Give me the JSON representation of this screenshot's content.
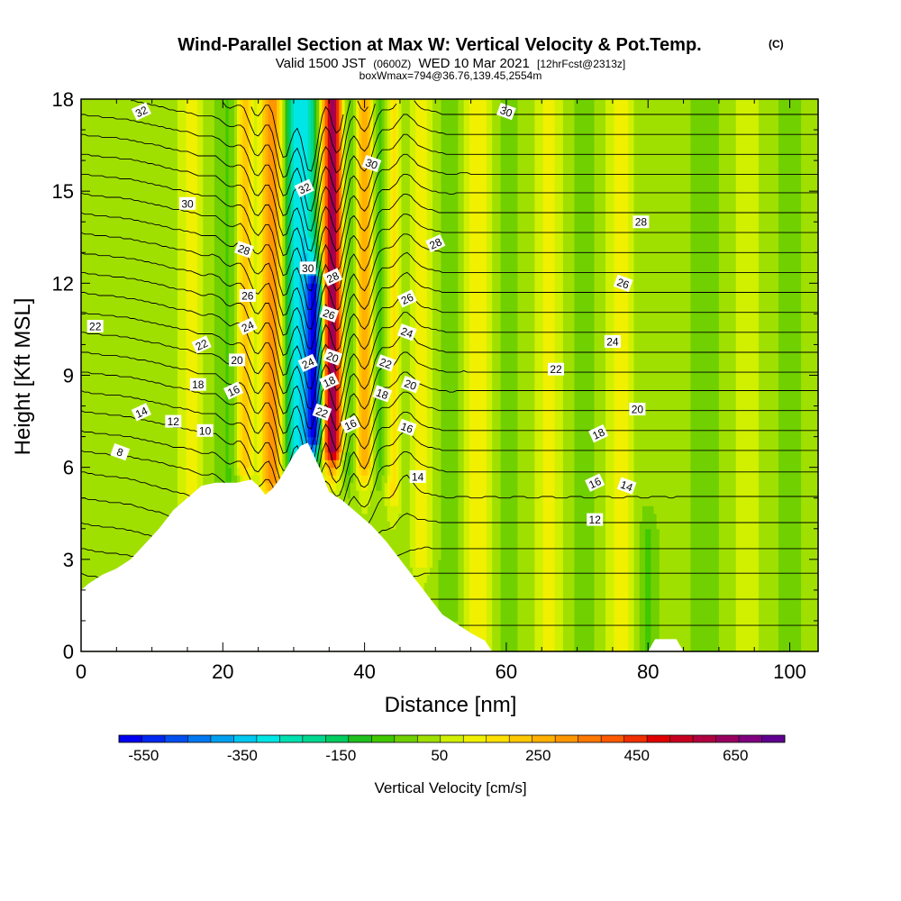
{
  "chart_data": {
    "type": "heatmap",
    "title": "Wind-Parallel Section at Max W: Vertical Velocity & Pot.Temp.",
    "title_mark": "(C)",
    "subtitle_parts": [
      "Valid 1500 JST",
      "(0600Z)",
      "WED 10 Mar 2021",
      "[12hrFcst@2313z]"
    ],
    "subtitle2": "boxWmax=794@36.76,139.45,2554m",
    "xlabel": "Distance [nm]",
    "ylabel": "Height [Kft MSL]",
    "xlim": [
      0,
      104
    ],
    "ylim": [
      0,
      18
    ],
    "xticks": [
      "0",
      "20",
      "40",
      "60",
      "80",
      "100"
    ],
    "yticks": [
      "0",
      "3",
      "6",
      "9",
      "12",
      "15",
      "18"
    ],
    "colorbar": {
      "label": "Vertical Velocity [cm/s]",
      "min": -600,
      "max": 750,
      "step": 50,
      "tick_labels": [
        "-550",
        "-350",
        "-150",
        "50",
        "250",
        "450",
        "650"
      ],
      "tick_values": [
        -550,
        -350,
        -150,
        50,
        250,
        450,
        650
      ],
      "colors": [
        "#0000f0",
        "#0028f0",
        "#0050f0",
        "#0078f0",
        "#00a0f0",
        "#00c8f0",
        "#00e6e6",
        "#00e0b0",
        "#00d890",
        "#00cc60",
        "#20c020",
        "#40c800",
        "#70d000",
        "#a0e000",
        "#d0f000",
        "#f0f000",
        "#ffe000",
        "#ffc800",
        "#ffb000",
        "#ff9600",
        "#ff7800",
        "#ff5a00",
        "#f03000",
        "#e00000",
        "#c80020",
        "#b00040",
        "#980060",
        "#800080",
        "#600090"
      ]
    },
    "terrain_kft": [
      [
        0,
        2
      ],
      [
        1,
        2.2
      ],
      [
        3,
        2.5
      ],
      [
        5,
        2.7
      ],
      [
        7,
        3.0
      ],
      [
        9,
        3.5
      ],
      [
        11,
        4.0
      ],
      [
        12,
        4.3
      ],
      [
        13,
        4.6
      ],
      [
        15,
        5.0
      ],
      [
        17,
        5.4
      ],
      [
        19,
        5.5
      ],
      [
        22,
        5.5
      ],
      [
        24,
        5.6
      ],
      [
        25,
        5.4
      ],
      [
        26,
        5.1
      ],
      [
        27,
        5.3
      ],
      [
        28,
        5.6
      ],
      [
        29,
        6.0
      ],
      [
        30,
        6.4
      ],
      [
        31,
        6.7
      ],
      [
        32,
        6.8
      ],
      [
        33,
        6.3
      ],
      [
        34,
        5.8
      ],
      [
        35,
        5.2
      ],
      [
        37,
        4.9
      ],
      [
        39,
        4.5
      ],
      [
        41,
        4.1
      ],
      [
        43,
        3.6
      ],
      [
        45,
        3.0
      ],
      [
        47,
        2.4
      ],
      [
        49,
        1.8
      ],
      [
        51,
        1.2
      ],
      [
        53,
        0.9
      ],
      [
        55,
        0.6
      ],
      [
        57,
        0.35
      ],
      [
        58,
        0.0
      ],
      [
        80,
        0.0
      ],
      [
        81,
        0.4
      ],
      [
        84,
        0.4
      ],
      [
        85,
        0.0
      ],
      [
        104,
        0.0
      ]
    ],
    "w_background_cms": 25,
    "w_features": [
      {
        "x": 15.5,
        "width": 1.5,
        "w": 100,
        "zmin": 4.5,
        "zmax": 18
      },
      {
        "x": 21,
        "width": 1.8,
        "w": -80,
        "zmin": 5,
        "zmax": 18
      },
      {
        "x": 23,
        "width": 1.2,
        "w": 220,
        "zmin": 6,
        "zmax": 18
      },
      {
        "x": 27,
        "width": 1.6,
        "w": 300,
        "zmin": 5.5,
        "zmax": 18
      },
      {
        "x": 29.5,
        "width": 1.4,
        "w": -150,
        "zmin": 6,
        "zmax": 18
      },
      {
        "x": 31.5,
        "width": 1.8,
        "w": -320,
        "zmin": 6.5,
        "zmax": 18
      },
      {
        "x": 33,
        "width": 1.0,
        "w": -520,
        "zmin": 7,
        "zmax": 12
      },
      {
        "x": 35.5,
        "width": 1.4,
        "w": 620,
        "zmin": 6.5,
        "zmax": 18
      },
      {
        "x": 37.5,
        "width": 1.2,
        "w": -120,
        "zmin": 6,
        "zmax": 18
      },
      {
        "x": 40,
        "width": 1.2,
        "w": 260,
        "zmin": 6,
        "zmax": 18
      },
      {
        "x": 42,
        "width": 1.2,
        "w": -90,
        "zmin": 6,
        "zmax": 18
      },
      {
        "x": 44,
        "width": 1.0,
        "w": 130,
        "zmin": 5,
        "zmax": 18
      },
      {
        "x": 48,
        "width": 1.4,
        "w": 120,
        "zmin": 3,
        "zmax": 18
      },
      {
        "x": 52,
        "width": 1.6,
        "w": -50,
        "zmin": 1,
        "zmax": 18
      },
      {
        "x": 56,
        "width": 2.0,
        "w": 110,
        "zmin": 0,
        "zmax": 18
      },
      {
        "x": 60,
        "width": 2.0,
        "w": -40,
        "zmin": 0,
        "zmax": 18
      },
      {
        "x": 66,
        "width": 2.0,
        "w": 90,
        "zmin": 0,
        "zmax": 18
      },
      {
        "x": 71,
        "width": 1.8,
        "w": -40,
        "zmin": 0,
        "zmax": 18
      },
      {
        "x": 76,
        "width": 1.8,
        "w": 100,
        "zmin": 0,
        "zmax": 18
      },
      {
        "x": 80,
        "width": 1.2,
        "w": -80,
        "zmin": 0,
        "zmax": 4
      },
      {
        "x": 88,
        "width": 2.0,
        "w": -50,
        "zmin": 0,
        "zmax": 18
      },
      {
        "x": 94,
        "width": 2.0,
        "w": 60,
        "zmin": 0,
        "zmax": 18
      },
      {
        "x": 100,
        "width": 2.0,
        "w": -40,
        "zmin": 0,
        "zmax": 18
      }
    ],
    "theta_contour_labels": [
      {
        "text": "32",
        "x": 8.5,
        "y": 17.6
      },
      {
        "text": "30",
        "x": 60,
        "y": 17.6
      },
      {
        "text": "30",
        "x": 15,
        "y": 14.6
      },
      {
        "text": "32",
        "x": 31.5,
        "y": 15.1
      },
      {
        "text": "30",
        "x": 41,
        "y": 15.9
      },
      {
        "text": "28",
        "x": 79,
        "y": 14.0
      },
      {
        "text": "28",
        "x": 50,
        "y": 13.3
      },
      {
        "text": "28",
        "x": 23,
        "y": 13.1
      },
      {
        "text": "30",
        "x": 32,
        "y": 12.5
      },
      {
        "text": "28",
        "x": 35.5,
        "y": 12.2
      },
      {
        "text": "26",
        "x": 76.5,
        "y": 12.0
      },
      {
        "text": "26",
        "x": 23.5,
        "y": 11.6
      },
      {
        "text": "26",
        "x": 46,
        "y": 11.5
      },
      {
        "text": "26",
        "x": 35,
        "y": 11.0
      },
      {
        "text": "22",
        "x": 2,
        "y": 10.6
      },
      {
        "text": "24",
        "x": 23.5,
        "y": 10.6
      },
      {
        "text": "24",
        "x": 46,
        "y": 10.4
      },
      {
        "text": "24",
        "x": 75,
        "y": 10.1
      },
      {
        "text": "22",
        "x": 17,
        "y": 10.0
      },
      {
        "text": "20",
        "x": 35.5,
        "y": 9.6
      },
      {
        "text": "20",
        "x": 22,
        "y": 9.5
      },
      {
        "text": "24",
        "x": 32,
        "y": 9.4
      },
      {
        "text": "22",
        "x": 43,
        "y": 9.4
      },
      {
        "text": "22",
        "x": 67,
        "y": 9.2
      },
      {
        "text": "18",
        "x": 35,
        "y": 8.8
      },
      {
        "text": "20",
        "x": 46.5,
        "y": 8.7
      },
      {
        "text": "18",
        "x": 16.5,
        "y": 8.7
      },
      {
        "text": "16",
        "x": 21.5,
        "y": 8.5
      },
      {
        "text": "18",
        "x": 42.5,
        "y": 8.4
      },
      {
        "text": "20",
        "x": 78.5,
        "y": 7.9
      },
      {
        "text": "14",
        "x": 8.5,
        "y": 7.8
      },
      {
        "text": "22",
        "x": 34,
        "y": 7.8
      },
      {
        "text": "12",
        "x": 13,
        "y": 7.5
      },
      {
        "text": "16",
        "x": 38,
        "y": 7.4
      },
      {
        "text": "16",
        "x": 46,
        "y": 7.3
      },
      {
        "text": "10",
        "x": 17.5,
        "y": 7.2
      },
      {
        "text": "18",
        "x": 73,
        "y": 7.1
      },
      {
        "text": "8",
        "x": 5.5,
        "y": 6.5
      },
      {
        "text": "14",
        "x": 47.5,
        "y": 5.7
      },
      {
        "text": "16",
        "x": 72.5,
        "y": 5.5
      },
      {
        "text": "14",
        "x": 77,
        "y": 5.4
      },
      {
        "text": "12",
        "x": 72.5,
        "y": 4.3
      }
    ]
  }
}
